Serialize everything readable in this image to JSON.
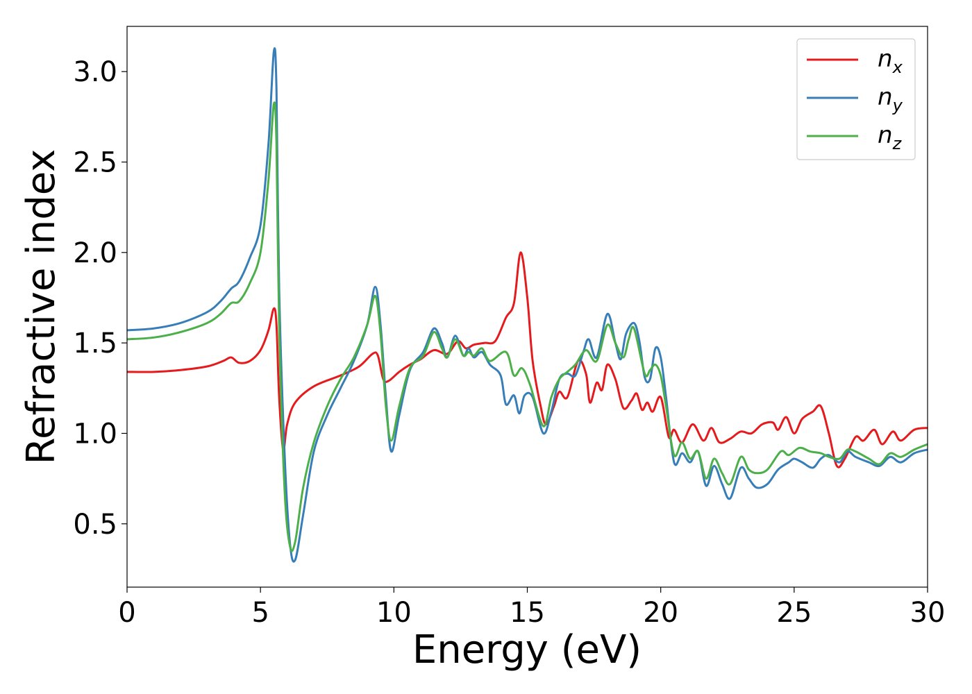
{
  "chart_data": {
    "type": "line",
    "title": "",
    "xlabel": "Energy (eV)",
    "ylabel": "Refractive index",
    "xlim": [
      0,
      30
    ],
    "ylim": [
      0.15,
      3.25
    ],
    "xticks": [
      0,
      5,
      10,
      15,
      20,
      25,
      30
    ],
    "xtick_labels": [
      "0",
      "5",
      "10",
      "15",
      "20",
      "25",
      "30"
    ],
    "yticks": [
      0.5,
      1.0,
      1.5,
      2.0,
      2.5,
      3.0
    ],
    "ytick_labels": [
      "0.5",
      "1.0",
      "1.5",
      "2.0",
      "2.5",
      "3.0"
    ],
    "grid": false,
    "legend_position": "top-right",
    "series": [
      {
        "name": "n",
        "subscript": "x",
        "color": "#e41a1c",
        "points": [
          [
            0,
            1.34
          ],
          [
            1,
            1.34
          ],
          [
            2,
            1.35
          ],
          [
            3,
            1.37
          ],
          [
            3.6,
            1.4
          ],
          [
            3.9,
            1.42
          ],
          [
            4.2,
            1.39
          ],
          [
            4.6,
            1.4
          ],
          [
            5.0,
            1.46
          ],
          [
            5.3,
            1.57
          ],
          [
            5.5,
            1.69
          ],
          [
            5.6,
            1.6
          ],
          [
            5.7,
            1.2
          ],
          [
            5.85,
            0.91
          ],
          [
            6.0,
            1.05
          ],
          [
            6.3,
            1.17
          ],
          [
            7,
            1.26
          ],
          [
            8,
            1.32
          ],
          [
            8.7,
            1.37
          ],
          [
            9.2,
            1.44
          ],
          [
            9.4,
            1.43
          ],
          [
            9.6,
            1.3
          ],
          [
            9.8,
            1.29
          ],
          [
            10.2,
            1.34
          ],
          [
            10.6,
            1.38
          ],
          [
            11,
            1.41
          ],
          [
            11.5,
            1.46
          ],
          [
            12,
            1.44
          ],
          [
            12.4,
            1.51
          ],
          [
            12.7,
            1.47
          ],
          [
            13,
            1.49
          ],
          [
            13.4,
            1.5
          ],
          [
            13.8,
            1.51
          ],
          [
            14.2,
            1.64
          ],
          [
            14.5,
            1.72
          ],
          [
            14.75,
            2.0
          ],
          [
            15,
            1.75
          ],
          [
            15.2,
            1.4
          ],
          [
            15.5,
            1.15
          ],
          [
            15.7,
            1.05
          ],
          [
            16,
            1.15
          ],
          [
            16.2,
            1.23
          ],
          [
            16.5,
            1.2
          ],
          [
            16.9,
            1.4
          ],
          [
            17.2,
            1.33
          ],
          [
            17.35,
            1.17
          ],
          [
            17.6,
            1.28
          ],
          [
            17.8,
            1.24
          ],
          [
            18.0,
            1.38
          ],
          [
            18.3,
            1.3
          ],
          [
            18.6,
            1.14
          ],
          [
            18.9,
            1.18
          ],
          [
            19.1,
            1.22
          ],
          [
            19.3,
            1.13
          ],
          [
            19.5,
            1.17
          ],
          [
            19.7,
            1.12
          ],
          [
            20.0,
            1.2
          ],
          [
            20.3,
            0.98
          ],
          [
            20.5,
            1.02
          ],
          [
            20.8,
            0.95
          ],
          [
            21.2,
            1.05
          ],
          [
            21.6,
            0.96
          ],
          [
            21.9,
            1.03
          ],
          [
            22.2,
            0.95
          ],
          [
            22.6,
            0.97
          ],
          [
            23,
            1.01
          ],
          [
            23.4,
            1.0
          ],
          [
            23.8,
            1.05
          ],
          [
            24.2,
            1.06
          ],
          [
            24.4,
            1.02
          ],
          [
            24.7,
            1.09
          ],
          [
            25,
            1.0
          ],
          [
            25.3,
            1.08
          ],
          [
            25.7,
            1.12
          ],
          [
            26,
            1.15
          ],
          [
            26.3,
            1.0
          ],
          [
            26.6,
            0.82
          ],
          [
            26.9,
            0.86
          ],
          [
            27.3,
            0.98
          ],
          [
            27.6,
            0.96
          ],
          [
            28,
            1.02
          ],
          [
            28.3,
            0.94
          ],
          [
            28.7,
            1.01
          ],
          [
            29,
            0.96
          ],
          [
            29.5,
            1.02
          ],
          [
            30,
            1.03
          ]
        ]
      },
      {
        "name": "n",
        "subscript": "y",
        "color": "#377eb8",
        "points": [
          [
            0,
            1.57
          ],
          [
            1,
            1.58
          ],
          [
            2,
            1.61
          ],
          [
            3,
            1.67
          ],
          [
            3.5,
            1.73
          ],
          [
            3.9,
            1.8
          ],
          [
            4.2,
            1.84
          ],
          [
            4.6,
            1.97
          ],
          [
            5.0,
            2.15
          ],
          [
            5.3,
            2.6
          ],
          [
            5.5,
            3.11
          ],
          [
            5.6,
            2.9
          ],
          [
            5.7,
            1.8
          ],
          [
            5.9,
            0.9
          ],
          [
            6.1,
            0.4
          ],
          [
            6.3,
            0.3
          ],
          [
            6.6,
            0.55
          ],
          [
            7,
            0.9
          ],
          [
            7.5,
            1.1
          ],
          [
            8,
            1.25
          ],
          [
            8.5,
            1.4
          ],
          [
            9,
            1.6
          ],
          [
            9.3,
            1.81
          ],
          [
            9.5,
            1.6
          ],
          [
            9.7,
            1.2
          ],
          [
            9.9,
            0.9
          ],
          [
            10.2,
            1.1
          ],
          [
            10.6,
            1.35
          ],
          [
            11.1,
            1.45
          ],
          [
            11.5,
            1.58
          ],
          [
            11.8,
            1.5
          ],
          [
            12,
            1.42
          ],
          [
            12.3,
            1.54
          ],
          [
            12.6,
            1.43
          ],
          [
            12.8,
            1.47
          ],
          [
            13,
            1.42
          ],
          [
            13.3,
            1.45
          ],
          [
            13.6,
            1.38
          ],
          [
            14,
            1.32
          ],
          [
            14.2,
            1.16
          ],
          [
            14.5,
            1.21
          ],
          [
            14.7,
            1.11
          ],
          [
            14.9,
            1.21
          ],
          [
            15.2,
            1.2
          ],
          [
            15.6,
            1.0
          ],
          [
            15.9,
            1.12
          ],
          [
            16.2,
            1.3
          ],
          [
            16.5,
            1.33
          ],
          [
            16.8,
            1.32
          ],
          [
            17.1,
            1.45
          ],
          [
            17.3,
            1.52
          ],
          [
            17.6,
            1.42
          ],
          [
            18,
            1.66
          ],
          [
            18.3,
            1.5
          ],
          [
            18.5,
            1.41
          ],
          [
            18.7,
            1.55
          ],
          [
            19,
            1.61
          ],
          [
            19.2,
            1.51
          ],
          [
            19.4,
            1.31
          ],
          [
            19.6,
            1.3
          ],
          [
            19.8,
            1.47
          ],
          [
            20,
            1.42
          ],
          [
            20.2,
            1.2
          ],
          [
            20.5,
            0.84
          ],
          [
            20.8,
            0.89
          ],
          [
            21.1,
            0.84
          ],
          [
            21.4,
            0.9
          ],
          [
            21.7,
            0.71
          ],
          [
            22,
            0.82
          ],
          [
            22.3,
            0.72
          ],
          [
            22.6,
            0.64
          ],
          [
            23,
            0.81
          ],
          [
            23.3,
            0.75
          ],
          [
            23.6,
            0.7
          ],
          [
            24,
            0.72
          ],
          [
            24.4,
            0.8
          ],
          [
            24.8,
            0.84
          ],
          [
            25,
            0.86
          ],
          [
            25.3,
            0.84
          ],
          [
            25.7,
            0.81
          ],
          [
            26,
            0.86
          ],
          [
            26.3,
            0.88
          ],
          [
            26.7,
            0.84
          ],
          [
            27,
            0.9
          ],
          [
            27.3,
            0.87
          ],
          [
            27.8,
            0.84
          ],
          [
            28.2,
            0.82
          ],
          [
            28.6,
            0.87
          ],
          [
            29,
            0.84
          ],
          [
            29.5,
            0.89
          ],
          [
            30,
            0.91
          ]
        ]
      },
      {
        "name": "n",
        "subscript": "z",
        "color": "#4daf4a",
        "points": [
          [
            0,
            1.52
          ],
          [
            1,
            1.53
          ],
          [
            2,
            1.56
          ],
          [
            3,
            1.61
          ],
          [
            3.5,
            1.66
          ],
          [
            3.9,
            1.72
          ],
          [
            4.2,
            1.73
          ],
          [
            4.6,
            1.83
          ],
          [
            5.0,
            2.0
          ],
          [
            5.3,
            2.4
          ],
          [
            5.5,
            2.82
          ],
          [
            5.6,
            2.6
          ],
          [
            5.7,
            1.6
          ],
          [
            5.9,
            0.7
          ],
          [
            6.1,
            0.38
          ],
          [
            6.3,
            0.4
          ],
          [
            6.6,
            0.7
          ],
          [
            7,
            0.95
          ],
          [
            7.5,
            1.15
          ],
          [
            8,
            1.3
          ],
          [
            8.5,
            1.42
          ],
          [
            9,
            1.6
          ],
          [
            9.3,
            1.76
          ],
          [
            9.5,
            1.55
          ],
          [
            9.7,
            1.15
          ],
          [
            9.9,
            0.96
          ],
          [
            10.2,
            1.15
          ],
          [
            10.6,
            1.36
          ],
          [
            11.1,
            1.43
          ],
          [
            11.5,
            1.56
          ],
          [
            11.8,
            1.47
          ],
          [
            12,
            1.42
          ],
          [
            12.3,
            1.52
          ],
          [
            12.6,
            1.43
          ],
          [
            12.8,
            1.45
          ],
          [
            13,
            1.43
          ],
          [
            13.3,
            1.47
          ],
          [
            13.6,
            1.4
          ],
          [
            14.2,
            1.45
          ],
          [
            14.5,
            1.32
          ],
          [
            14.8,
            1.36
          ],
          [
            15.1,
            1.27
          ],
          [
            15.6,
            1.04
          ],
          [
            15.9,
            1.2
          ],
          [
            16.2,
            1.3
          ],
          [
            16.5,
            1.34
          ],
          [
            16.8,
            1.38
          ],
          [
            17.2,
            1.46
          ],
          [
            17.6,
            1.4
          ],
          [
            18,
            1.6
          ],
          [
            18.3,
            1.5
          ],
          [
            18.6,
            1.42
          ],
          [
            18.8,
            1.52
          ],
          [
            19,
            1.58
          ],
          [
            19.4,
            1.33
          ],
          [
            19.6,
            1.35
          ],
          [
            19.8,
            1.38
          ],
          [
            20,
            1.32
          ],
          [
            20.2,
            1.15
          ],
          [
            20.5,
            0.88
          ],
          [
            20.8,
            0.95
          ],
          [
            21.1,
            0.86
          ],
          [
            21.4,
            0.9
          ],
          [
            21.7,
            0.75
          ],
          [
            22,
            0.86
          ],
          [
            22.3,
            0.78
          ],
          [
            22.6,
            0.72
          ],
          [
            23,
            0.87
          ],
          [
            23.3,
            0.8
          ],
          [
            23.6,
            0.78
          ],
          [
            24,
            0.8
          ],
          [
            24.5,
            0.9
          ],
          [
            24.8,
            0.88
          ],
          [
            25.2,
            0.92
          ],
          [
            25.6,
            0.9
          ],
          [
            26,
            0.89
          ],
          [
            26.3,
            0.87
          ],
          [
            26.7,
            0.86
          ],
          [
            27,
            0.91
          ],
          [
            27.3,
            0.9
          ],
          [
            27.8,
            0.86
          ],
          [
            28.2,
            0.83
          ],
          [
            28.6,
            0.89
          ],
          [
            29,
            0.87
          ],
          [
            29.5,
            0.91
          ],
          [
            30,
            0.94
          ]
        ]
      }
    ]
  }
}
